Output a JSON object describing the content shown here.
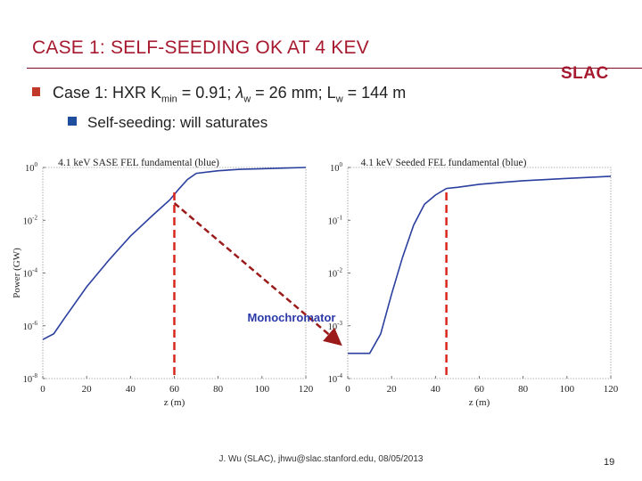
{
  "title": "CASE 1: SELF-SEEDING OK AT 4 KEV",
  "logo": "SLAC",
  "bullets": {
    "b1_pre": "Case 1: HXR K",
    "b1_sub_min": "min",
    "b1_mid1": " = 0.91; ",
    "b1_lambda": "λ",
    "b1_sub_w1": "w",
    "b1_mid2": " = 26 mm; L",
    "b1_sub_w2": "w",
    "b1_post": " = 144 m",
    "b2": "Self-seeding: will saturates"
  },
  "annotation": "Monochromator",
  "footer": "J. Wu (SLAC), jhwu@slac.stanford.edu, 08/05/2013",
  "page_number": "19",
  "colors": {
    "title": "#a6192e",
    "curve": "#2a3f9e",
    "marker": "#d9271e",
    "arrow": "#9b1b1b"
  },
  "chart_data": [
    {
      "type": "line",
      "title": "4.1 keV SASE FEL fundamental (blue)",
      "xlabel": "z (m)",
      "ylabel": "Power (GW)",
      "xlim": [
        0,
        120
      ],
      "log_y": true,
      "ylim": [
        1e-08,
        1
      ],
      "xticks": [
        "0",
        "20",
        "40",
        "60",
        "80",
        "100",
        "120"
      ],
      "yticks": [
        "10^0",
        "10^-2",
        "10^-4",
        "10^-6",
        "10^-8"
      ],
      "marker_z": 60,
      "x": [
        0,
        5,
        10,
        20,
        30,
        40,
        50,
        58,
        62,
        66,
        70,
        80,
        90,
        100,
        110,
        120
      ],
      "y": [
        3e-07,
        5e-07,
        2e-06,
        3e-05,
        0.0003,
        0.0025,
        0.015,
        0.06,
        0.15,
        0.35,
        0.6,
        0.75,
        0.85,
        0.9,
        0.95,
        1.0
      ]
    },
    {
      "type": "line",
      "title": "4.1 keV Seeded FEL fundamental (blue)",
      "xlabel": "z (m)",
      "ylabel": "",
      "xlim": [
        0,
        120
      ],
      "log_y": true,
      "ylim": [
        0.0001,
        1
      ],
      "xticks": [
        "0",
        "20",
        "40",
        "60",
        "80",
        "100",
        "120"
      ],
      "yticks": [
        "10^0",
        "10^-1",
        "10^-2",
        "10^-3",
        "10^-4"
      ],
      "marker_z": 45,
      "x": [
        0,
        5,
        10,
        15,
        20,
        25,
        30,
        35,
        40,
        45,
        50,
        60,
        70,
        80,
        100,
        120
      ],
      "y": [
        0.0003,
        0.0003,
        0.0003,
        0.0007,
        0.004,
        0.02,
        0.08,
        0.2,
        0.3,
        0.4,
        0.42,
        0.48,
        0.52,
        0.56,
        0.62,
        0.68
      ]
    }
  ]
}
